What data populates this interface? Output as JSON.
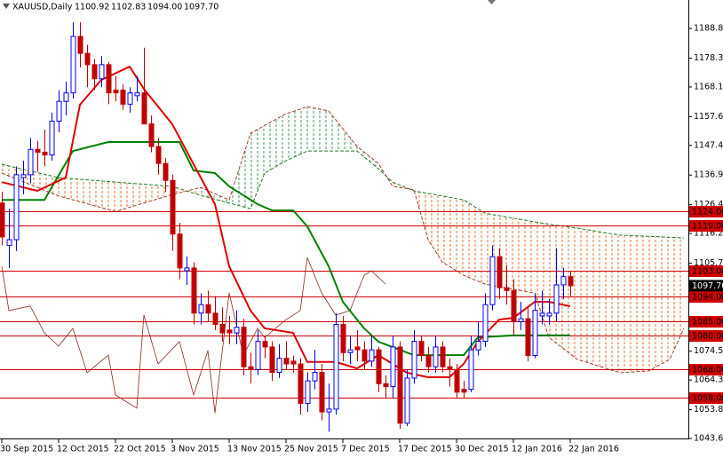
{
  "chart_data": {
    "type": "candlestick",
    "title": "XAUUSD,Daily",
    "ohlc_labels": [
      "1100.92",
      "1102.83",
      "1094.00",
      "1097.70"
    ],
    "xlim": [
      -0.25,
      96.625
    ],
    "ylim": [
      1043.6,
      1198.9
    ],
    "xticks": [
      {
        "value": 0,
        "label": "30 Sep 2015"
      },
      {
        "value": 8,
        "label": "12 Oct 2015"
      },
      {
        "value": 16,
        "label": "22 Oct 2015"
      },
      {
        "value": 24,
        "label": "3 Nov 2015"
      },
      {
        "value": 32,
        "label": "13 Nov 2015"
      },
      {
        "value": 40,
        "label": "25 Nov 2015"
      },
      {
        "value": 48,
        "label": "7 Dec 2015"
      },
      {
        "value": 56,
        "label": "17 Dec 2015"
      },
      {
        "value": 64,
        "label": "30 Dec 2015"
      },
      {
        "value": 72,
        "label": "12 Jan 2016"
      },
      {
        "value": 80,
        "label": "22 Jan 2016"
      }
    ],
    "yticks": [
      {
        "value": 1188.8,
        "label": "1188.80"
      },
      {
        "value": 1178.3,
        "label": "1178.30"
      },
      {
        "value": 1168.1,
        "label": "1168.10"
      },
      {
        "value": 1157.6,
        "label": "1157.60"
      },
      {
        "value": 1147.4,
        "label": "1147.40"
      },
      {
        "value": 1136.9,
        "label": "1136.90"
      },
      {
        "value": 1126.4,
        "label": "1126.40"
      },
      {
        "value": 1116.2,
        "label": "1116.20"
      },
      {
        "value": 1105.7,
        "label": "1105.70"
      },
      {
        "value": 1074.5,
        "label": "1074.50"
      },
      {
        "value": 1064.3,
        "label": "1064.30"
      },
      {
        "value": 1053.8,
        "label": "1053.80"
      },
      {
        "value": 1043.6,
        "label": "1043.60"
      }
    ],
    "levels": [
      {
        "value": 1124,
        "label": "1124.00"
      },
      {
        "value": 1119,
        "label": "1119.00"
      },
      {
        "value": 1103,
        "label": "1103.00"
      },
      {
        "value": 1094,
        "label": "1094.00"
      },
      {
        "value": 1085,
        "label": "1085.00"
      },
      {
        "value": 1080,
        "label": "1080.00"
      },
      {
        "value": 1068,
        "label": "1068.00"
      },
      {
        "value": 1058,
        "label": "1058.00"
      }
    ],
    "level_color": "#d00000",
    "current": {
      "value": 1097.7,
      "label": "1097.70"
    },
    "up_color": "#0000ff",
    "down_color": "#c00000",
    "candles": {
      "open": [
        1127,
        1112,
        1114,
        1136,
        1137,
        1146,
        1145,
        1144,
        1156,
        1163,
        1166,
        1186,
        1180,
        1176,
        1171,
        1176,
        1167,
        1167,
        1162,
        1165,
        1166,
        1155,
        1147,
        1141,
        1135,
        1116,
        1103,
        1104,
        1088,
        1091,
        1088,
        1084,
        1082,
        1081,
        1083,
        1069,
        1068,
        1078,
        1076,
        1067,
        1072,
        1071,
        1070,
        1056,
        1064,
        1067,
        1053,
        1054,
        1084,
        1074,
        1076,
        1075,
        1071,
        1075,
        1063,
        1062,
        1076,
        1049,
        1065,
        1078,
        1073,
        1069,
        1076,
        1069,
        1068,
        1061,
        1061,
        1075,
        1078,
        1091,
        1108,
        1097,
        1096,
        1085,
        1086,
        1073,
        1087,
        1087,
        1088,
        1098,
        1100.92
      ],
      "high": [
        1131,
        1125,
        1140,
        1142,
        1150,
        1149,
        1153,
        1159,
        1167,
        1170,
        1191,
        1191,
        1183,
        1178,
        1179,
        1177,
        1172,
        1169,
        1168,
        1172,
        1182,
        1158,
        1150,
        1143,
        1137,
        1120,
        1108,
        1106,
        1095,
        1096,
        1094,
        1090,
        1087,
        1089,
        1086,
        1074,
        1082,
        1080,
        1078,
        1077,
        1078,
        1073,
        1072,
        1067,
        1075,
        1070,
        1063,
        1088,
        1087,
        1080,
        1082,
        1078,
        1080,
        1076,
        1066,
        1080,
        1078,
        1068,
        1082,
        1080,
        1076,
        1080,
        1078,
        1072,
        1070,
        1064,
        1080,
        1085,
        1095,
        1112,
        1111,
        1105,
        1100,
        1092,
        1090,
        1095,
        1096,
        1093,
        1111,
        1104,
        1102.83
      ],
      "low": [
        1112,
        1104,
        1110,
        1130,
        1134,
        1138,
        1140,
        1142,
        1152,
        1158,
        1164,
        1175,
        1168,
        1167,
        1168,
        1162,
        1163,
        1160,
        1159,
        1163,
        1155,
        1145,
        1137,
        1131,
        1110,
        1100,
        1098,
        1084,
        1084,
        1085,
        1082,
        1078,
        1077,
        1077,
        1066,
        1063,
        1066,
        1072,
        1064,
        1065,
        1068,
        1067,
        1052,
        1053,
        1061,
        1050,
        1046,
        1052,
        1071,
        1070,
        1071,
        1068,
        1069,
        1060,
        1058,
        1058,
        1047,
        1048,
        1063,
        1071,
        1067,
        1067,
        1067,
        1062,
        1058,
        1058,
        1060,
        1073,
        1076,
        1089,
        1093,
        1091,
        1080,
        1082,
        1071,
        1072,
        1084,
        1084,
        1085,
        1093,
        1094
      ],
      "close": [
        1115,
        1114,
        1137,
        1137,
        1146,
        1145,
        1144,
        1156,
        1163,
        1166,
        1186,
        1180,
        1176,
        1171,
        1176,
        1166,
        1166,
        1162,
        1166,
        1166,
        1155,
        1147,
        1141,
        1135,
        1116,
        1104,
        1104,
        1088,
        1091,
        1088,
        1084,
        1081,
        1081,
        1083,
        1069,
        1068,
        1078,
        1076,
        1067,
        1072,
        1070,
        1070,
        1056,
        1064,
        1067,
        1053,
        1054,
        1084,
        1074,
        1075,
        1075,
        1071,
        1075,
        1063,
        1062,
        1076,
        1049,
        1065,
        1078,
        1073,
        1069,
        1076,
        1069,
        1068,
        1060,
        1060,
        1075,
        1078,
        1091,
        1108,
        1097,
        1096,
        1085,
        1086,
        1073,
        1089,
        1088,
        1088,
        1098,
        1100.92,
        1097.7
      ]
    },
    "cloud": {
      "x": [
        0,
        8,
        16,
        24,
        28,
        32,
        35,
        37,
        40,
        43,
        46,
        50,
        53,
        55,
        58,
        60,
        62,
        65,
        68,
        75,
        77,
        81,
        87,
        91,
        94,
        96
      ],
      "span_a": [
        1140.7,
        1136.0,
        1134.4,
        1132.9,
        1129.7,
        1127.0,
        1125.0,
        1137.6,
        1142.0,
        1145.4,
        1145.4,
        1145.4,
        1139.1,
        1134.4,
        1131.3,
        1130.4,
        1129.5,
        1128.1,
        1123.4,
        1120.3,
        1119.5,
        1118.1,
        1115.6,
        1115.2,
        1114.9,
        1114.6
      ],
      "span_b": [
        1137.6,
        1129.5,
        1124.0,
        1130.0,
        1132.5,
        1128.1,
        1151.7,
        1154.5,
        1158.6,
        1161.1,
        1159.6,
        1147.0,
        1141.0,
        1132.9,
        1131.7,
        1114.0,
        1106.1,
        1101.4,
        1098.3,
        1095.1,
        1079.4,
        1071.6,
        1066.9,
        1067.5,
        1071.6,
        1082.6
      ],
      "a_color": "#1f7a1f",
      "b_color": "#a0402a",
      "a_above_fill": "#e8702a",
      "b_above_fill": "#3c9a5f"
    },
    "series": [
      {
        "color": "#8b2a1a",
        "width": 0.8,
        "x": [
          0,
          1,
          4,
          6,
          8,
          10,
          12,
          15,
          16,
          19,
          20,
          22,
          25,
          27,
          29,
          30,
          32,
          34,
          36,
          37,
          40,
          42,
          43,
          45,
          47,
          49,
          51,
          52,
          54
        ],
        "values": [
          1104.6,
          1088.9,
          1090.5,
          1081.0,
          1076.3,
          1082.6,
          1066.9,
          1073.1,
          1059.0,
          1054.3,
          1087.3,
          1070.0,
          1077.9,
          1059.0,
          1074.7,
          1052.7,
          1095.2,
          1073.1,
          1082.6,
          1079.4,
          1085.7,
          1088.9,
          1107.7,
          1095.2,
          1087.3,
          1088.9,
          1101.4,
          1103.0,
          1098.3
        ]
      },
      {
        "color": "#008000",
        "width": 2,
        "x": [
          0,
          6,
          10,
          15,
          25,
          27,
          30,
          32,
          36,
          38,
          41,
          43,
          46,
          48,
          51,
          53,
          58,
          65,
          67,
          72,
          80
        ],
        "values": [
          1128.1,
          1128.1,
          1145.4,
          1148.6,
          1148.6,
          1138.5,
          1137.6,
          1132.9,
          1126.6,
          1124.4,
          1124.4,
          1118.7,
          1104.6,
          1092.0,
          1082.6,
          1077.9,
          1073.1,
          1073.1,
          1079.4,
          1080.1,
          1080.1
        ]
      },
      {
        "color": "#e00000",
        "width": 2,
        "x": [
          0,
          5,
          9,
          11,
          14,
          18,
          20,
          24,
          27,
          30,
          32,
          35,
          37,
          41,
          43,
          47,
          50,
          53,
          57,
          60,
          63,
          65,
          67,
          70,
          72,
          75,
          77,
          80
        ],
        "values": [
          1134.4,
          1131.3,
          1136.0,
          1161.8,
          1170.6,
          1175.3,
          1167.4,
          1154.9,
          1140.7,
          1126.6,
          1104.6,
          1088.9,
          1082.6,
          1081.0,
          1070.7,
          1070.7,
          1068.4,
          1073.1,
          1066.9,
          1065.3,
          1065.3,
          1070.0,
          1077.9,
          1085.7,
          1086.3,
          1092.0,
          1092.0,
          1090.4
        ]
      }
    ]
  }
}
